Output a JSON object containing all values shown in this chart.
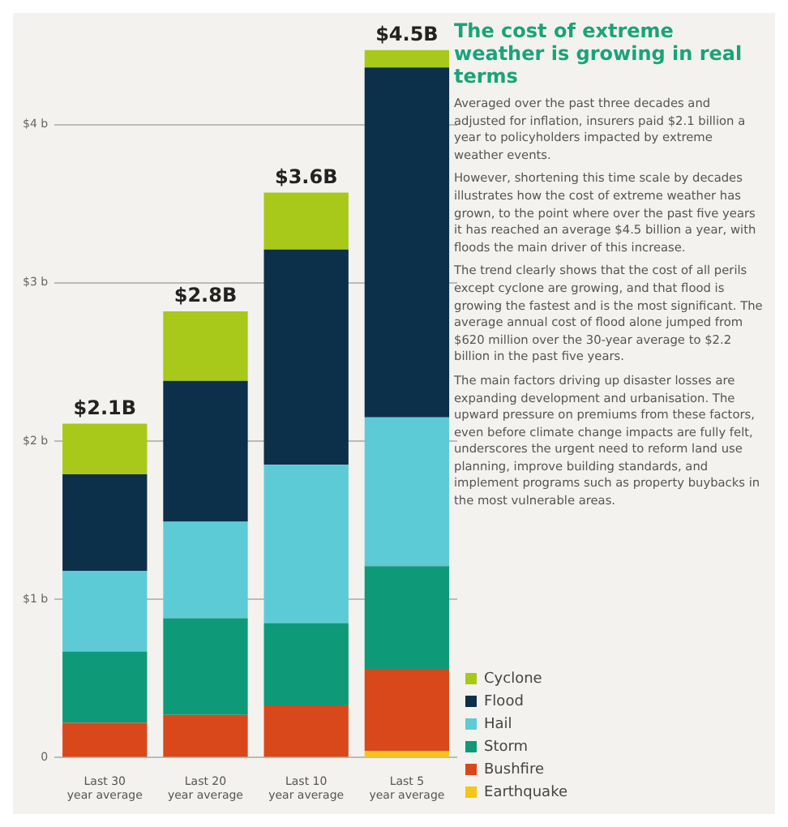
{
  "chart_data": {
    "type": "bar",
    "stacked": true,
    "title": "The cost of extreme weather is growing in real terms",
    "annotations": [
      "Averaged over the past three decades and adjusted for inflation, insurers paid $2.1 billion a year to policyholders impacted by extreme weather events.",
      "However, shortening this time scale by decades illustrates how the cost of extreme weather has grown, to the point where over the past five years it has reached an average $4.5 billion a year, with floods the main driver of this increase.",
      "The trend clearly shows that the cost of all perils except cyclone are growing, and that flood is growing the fastest and is the most significant. The average annual cost of flood alone jumped from $620 million over the 30-year average to $2.2 billion in the past five years.",
      "The main factors driving up disaster losses are expanding development and urbanisation. The upward pressure on premiums from these factors, even before climate change impacts are fully felt, underscores the urgent need to reform land use planning, improve building standards, and implement programs such as property buybacks in the most vulnerable areas."
    ],
    "categories": [
      "Last 30 year average",
      "Last 20 year average",
      "Last 10 year average",
      "Last 5 year average"
    ],
    "series": [
      {
        "name": "Earthquake",
        "color": "#f5c518",
        "values": [
          0,
          0,
          0,
          0.04
        ]
      },
      {
        "name": "Bushfire",
        "color": "#d9481a",
        "values": [
          0.22,
          0.27,
          0.33,
          0.52
        ]
      },
      {
        "name": "Storm",
        "color": "#0e9a78",
        "values": [
          0.45,
          0.61,
          0.52,
          0.65
        ]
      },
      {
        "name": "Hail",
        "color": "#5ccbd6",
        "values": [
          0.51,
          0.61,
          1.0,
          0.94
        ]
      },
      {
        "name": "Flood",
        "color": "#0c2f4a",
        "values": [
          0.61,
          0.89,
          1.36,
          2.21
        ]
      },
      {
        "name": "Cyclone",
        "color": "#a8c81a",
        "values": [
          0.32,
          0.44,
          0.36,
          0.11
        ]
      }
    ],
    "totals": [
      "$2.1B",
      "$2.8B",
      "$3.6B",
      "$4.5B"
    ],
    "ylim": [
      0,
      4.5
    ],
    "yticks": [
      {
        "value": 0,
        "label": "0"
      },
      {
        "value": 1,
        "label": "$1 b"
      },
      {
        "value": 2,
        "label": "$2 b"
      },
      {
        "value": 3,
        "label": "$3 b"
      },
      {
        "value": 4,
        "label": "$4 b"
      }
    ],
    "grid": "y",
    "legend": "bottom right"
  }
}
